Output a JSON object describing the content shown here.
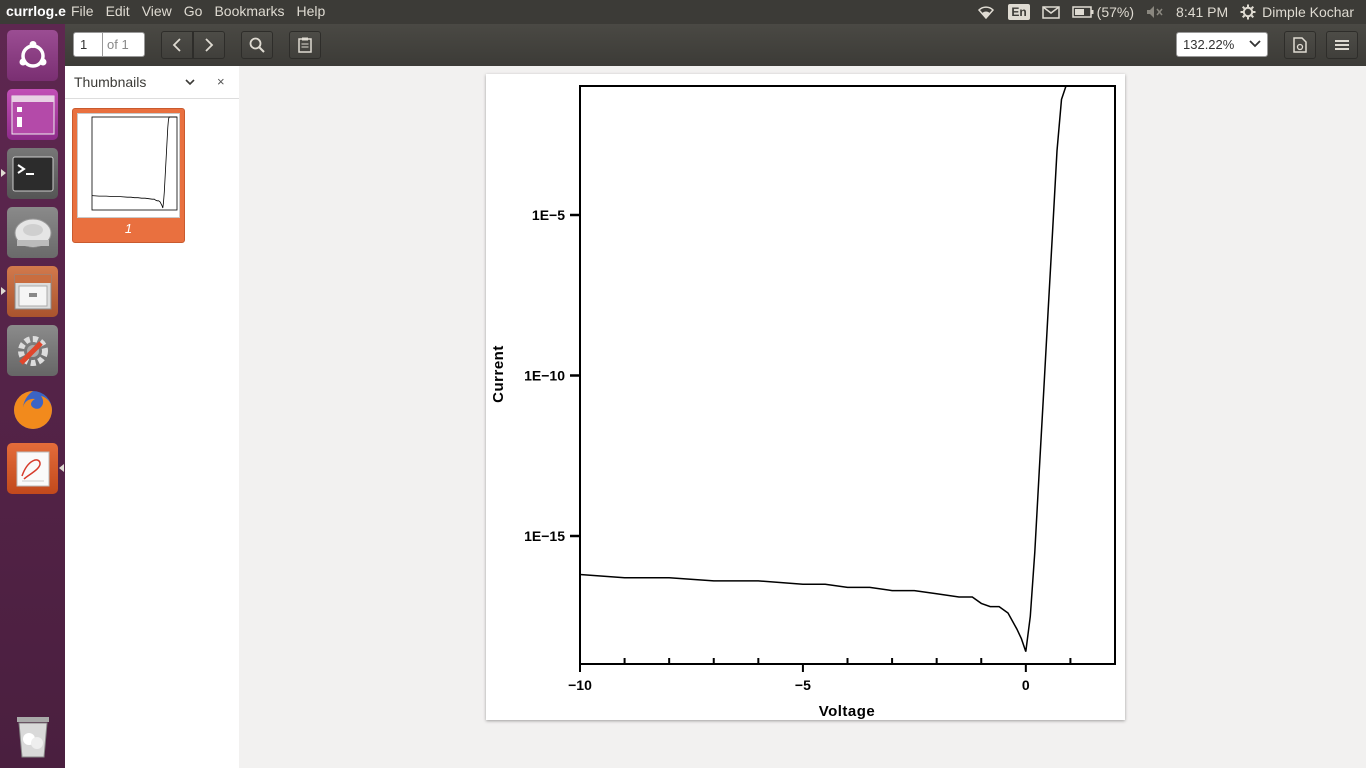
{
  "window": {
    "app_title": "currlog.e"
  },
  "menu": [
    "File",
    "Edit",
    "View",
    "Go",
    "Bookmarks",
    "Help"
  ],
  "indicators": {
    "keyboard": "En",
    "battery": "(57%)",
    "time": "8:41 PM",
    "user": "Dimple Kochar"
  },
  "toolbar": {
    "page_value": "1",
    "page_of": "of 1",
    "zoom": "132.22%"
  },
  "sidebar": {
    "title": "Thumbnails",
    "close": "×",
    "thumbnail_label": "1"
  },
  "colors": {
    "launcher": "#5e2750",
    "panel": "#3c3b37",
    "accent": "#e9703f"
  },
  "launcher_icons": [
    "ubuntu-dash-icon",
    "workspace-icon",
    "terminal-icon",
    "disk-icon",
    "file-manager-icon",
    "system-settings-icon",
    "firefox-icon",
    "document-viewer-icon",
    "trash-icon"
  ],
  "chart_data": {
    "type": "line",
    "xlabel": "Voltage",
    "ylabel": "Current",
    "xlim": [
      -10,
      2
    ],
    "ylim_log10": [
      -19,
      1
    ],
    "yscale": "log",
    "x_ticks": [
      -10,
      -5,
      0
    ],
    "x_tick_labels": [
      "−10",
      "−5",
      "0"
    ],
    "y_ticks_log10": [
      -5,
      -10,
      -15
    ],
    "y_tick_labels": [
      "1E−5",
      "1E−10",
      "1E−15"
    ],
    "series": [
      {
        "x": [
          -10,
          -9,
          -8,
          -7,
          -6,
          -5,
          -4.5,
          -4,
          -3.5,
          -3,
          -2.5,
          -2,
          -1.5,
          -1.2,
          -1,
          -0.8,
          -0.6,
          -0.4,
          -0.2,
          -0.1,
          0,
          0.1,
          0.2,
          0.3,
          0.4,
          0.5,
          0.6,
          0.7,
          0.8,
          0.9,
          1.0,
          1.2,
          1.4,
          1.6,
          1.8,
          2.0
        ],
        "y_log10": [
          -16.2,
          -16.3,
          -16.3,
          -16.4,
          -16.4,
          -16.5,
          -16.5,
          -16.6,
          -16.6,
          -16.7,
          -16.7,
          -16.8,
          -16.9,
          -16.9,
          -17.1,
          -17.2,
          -17.2,
          -17.4,
          -17.9,
          -18.2,
          -18.6,
          -17.5,
          -15.5,
          -13.0,
          -10.5,
          -8.0,
          -5.5,
          -3.0,
          -1.4,
          -0.8,
          -0.5,
          -0.1,
          0.2,
          0.4,
          0.6,
          0.8
        ]
      }
    ]
  }
}
